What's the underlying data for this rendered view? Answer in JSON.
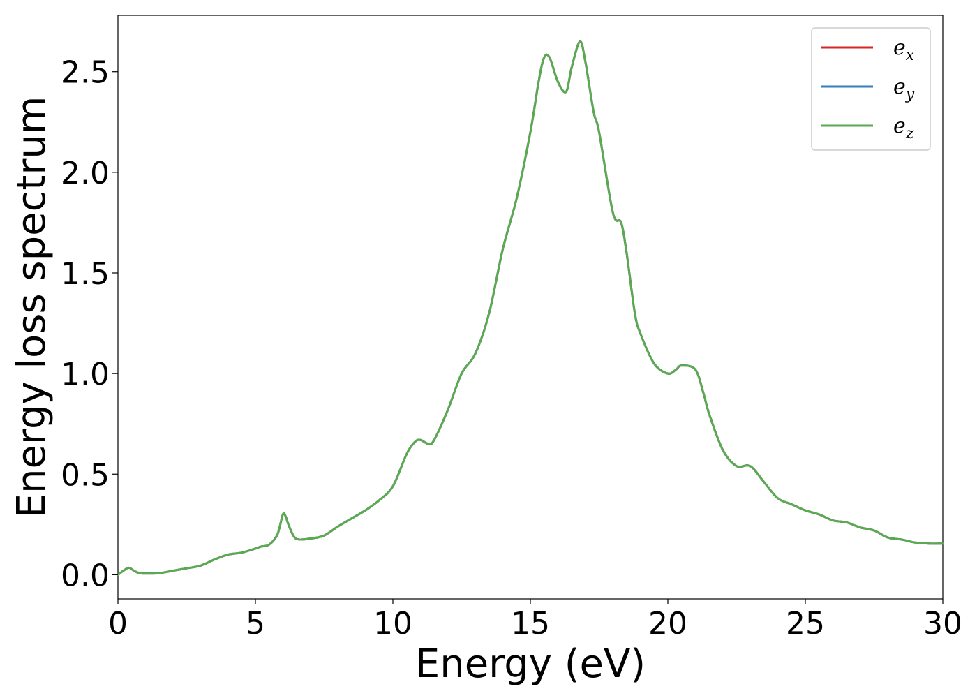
{
  "chart_data": {
    "type": "line",
    "title": "",
    "xlabel": "Energy (eV)",
    "ylabel": "Energy loss spectrum",
    "xlim": [
      0,
      30
    ],
    "ylim": [
      -0.12,
      2.78
    ],
    "xticks": [
      0,
      5,
      10,
      15,
      20,
      25,
      30
    ],
    "xtick_labels": [
      "0",
      "5",
      "10",
      "15",
      "20",
      "25",
      "30"
    ],
    "yticks": [
      0.0,
      0.5,
      1.0,
      1.5,
      2.0,
      2.5
    ],
    "ytick_labels": [
      "0.0",
      "0.5",
      "1.0",
      "1.5",
      "2.0",
      "2.5"
    ],
    "grid": false,
    "legend_position": "top-right",
    "x": [
      0,
      0.2,
      0.4,
      0.6,
      0.8,
      1.0,
      1.5,
      2.0,
      2.5,
      3.0,
      3.5,
      4.0,
      4.5,
      5.0,
      5.2,
      5.5,
      5.8,
      6.0,
      6.1,
      6.2,
      6.4,
      6.6,
      7.0,
      7.5,
      8.0,
      8.5,
      9.0,
      9.5,
      10.0,
      10.5,
      10.8,
      11.0,
      11.3,
      11.5,
      12.0,
      12.5,
      13.0,
      13.5,
      14.0,
      14.5,
      15.0,
      15.3,
      15.5,
      15.7,
      16.0,
      16.3,
      16.5,
      16.8,
      17.0,
      17.3,
      17.5,
      18.0,
      18.3,
      18.5,
      18.8,
      19.0,
      19.5,
      20.0,
      20.3,
      20.5,
      21.0,
      21.3,
      21.5,
      22.0,
      22.5,
      23.0,
      23.5,
      24.0,
      24.5,
      25.0,
      25.5,
      26.0,
      26.5,
      27.0,
      27.5,
      28.0,
      28.5,
      29.0,
      29.5,
      30.0
    ],
    "series": [
      {
        "name": "e_x",
        "label_base": "e",
        "label_sub": "x",
        "color": "#d62728",
        "values": [
          0.0,
          0.02,
          0.035,
          0.018,
          0.008,
          0.006,
          0.008,
          0.02,
          0.032,
          0.045,
          0.075,
          0.1,
          0.11,
          0.13,
          0.14,
          0.15,
          0.2,
          0.3,
          0.29,
          0.25,
          0.19,
          0.175,
          0.18,
          0.195,
          0.24,
          0.28,
          0.32,
          0.37,
          0.44,
          0.6,
          0.66,
          0.67,
          0.65,
          0.67,
          0.82,
          1.0,
          1.1,
          1.3,
          1.62,
          1.87,
          2.2,
          2.45,
          2.57,
          2.57,
          2.45,
          2.4,
          2.52,
          2.65,
          2.55,
          2.3,
          2.2,
          1.8,
          1.75,
          1.6,
          1.3,
          1.2,
          1.05,
          1.0,
          1.02,
          1.04,
          1.02,
          0.9,
          0.8,
          0.62,
          0.54,
          0.54,
          0.46,
          0.38,
          0.35,
          0.32,
          0.3,
          0.27,
          0.26,
          0.235,
          0.22,
          0.185,
          0.175,
          0.16,
          0.155,
          0.155
        ]
      },
      {
        "name": "e_y",
        "label_base": "e",
        "label_sub": "y",
        "color": "#377eb8",
        "values": [
          0.0,
          0.02,
          0.035,
          0.018,
          0.008,
          0.006,
          0.008,
          0.02,
          0.032,
          0.045,
          0.075,
          0.1,
          0.11,
          0.13,
          0.14,
          0.15,
          0.2,
          0.3,
          0.29,
          0.25,
          0.19,
          0.175,
          0.18,
          0.195,
          0.24,
          0.28,
          0.32,
          0.37,
          0.44,
          0.6,
          0.66,
          0.67,
          0.65,
          0.67,
          0.82,
          1.0,
          1.1,
          1.3,
          1.62,
          1.87,
          2.2,
          2.45,
          2.57,
          2.57,
          2.45,
          2.4,
          2.52,
          2.65,
          2.55,
          2.3,
          2.2,
          1.8,
          1.75,
          1.6,
          1.3,
          1.2,
          1.05,
          1.0,
          1.02,
          1.04,
          1.02,
          0.9,
          0.8,
          0.62,
          0.54,
          0.54,
          0.46,
          0.38,
          0.35,
          0.32,
          0.3,
          0.27,
          0.26,
          0.235,
          0.22,
          0.185,
          0.175,
          0.16,
          0.155,
          0.155
        ]
      },
      {
        "name": "e_z",
        "label_base": "e",
        "label_sub": "z",
        "color": "#5aaa50",
        "values": [
          0.0,
          0.02,
          0.035,
          0.018,
          0.008,
          0.006,
          0.008,
          0.02,
          0.032,
          0.045,
          0.075,
          0.1,
          0.11,
          0.13,
          0.14,
          0.15,
          0.2,
          0.3,
          0.29,
          0.25,
          0.19,
          0.175,
          0.18,
          0.195,
          0.24,
          0.28,
          0.32,
          0.37,
          0.44,
          0.6,
          0.66,
          0.67,
          0.65,
          0.67,
          0.82,
          1.0,
          1.1,
          1.3,
          1.62,
          1.87,
          2.2,
          2.45,
          2.57,
          2.57,
          2.45,
          2.4,
          2.52,
          2.65,
          2.55,
          2.3,
          2.2,
          1.8,
          1.75,
          1.6,
          1.3,
          1.2,
          1.05,
          1.0,
          1.02,
          1.04,
          1.02,
          0.9,
          0.8,
          0.62,
          0.54,
          0.54,
          0.46,
          0.38,
          0.35,
          0.32,
          0.3,
          0.27,
          0.26,
          0.235,
          0.22,
          0.185,
          0.175,
          0.16,
          0.155,
          0.155
        ]
      }
    ]
  }
}
